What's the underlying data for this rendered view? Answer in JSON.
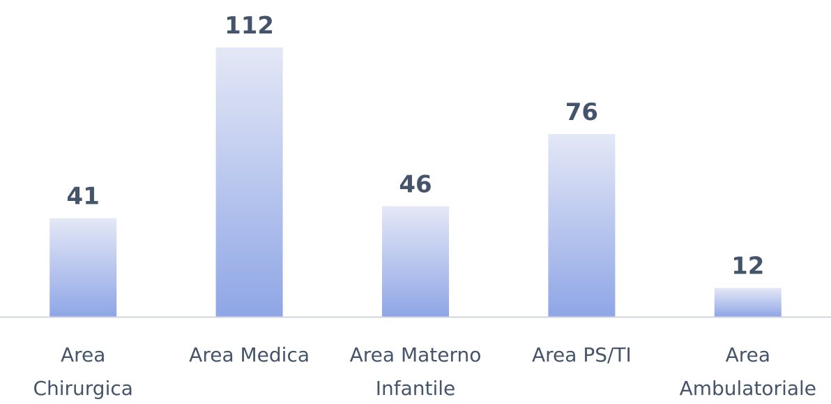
{
  "chart_data": {
    "type": "bar",
    "categories": [
      [
        "Area",
        "Chirurgica"
      ],
      [
        "Area Medica"
      ],
      [
        "Area Materno",
        "Infantile"
      ],
      [
        "Area PS/TI"
      ],
      [
        "Area",
        "Ambulatoriale"
      ]
    ],
    "values": [
      41,
      112,
      46,
      76,
      12
    ],
    "data_labels": [
      "41",
      "112",
      "46",
      "76",
      "12"
    ],
    "title": "",
    "xlabel": "",
    "ylabel": "",
    "ylim": [
      0,
      112
    ],
    "grid": false,
    "legend": "none",
    "colors": {
      "bar_top": "#e4e8f6",
      "bar_bottom": "#8fa6e6",
      "axis": "#d0d5e0",
      "text": "#44546a"
    }
  }
}
